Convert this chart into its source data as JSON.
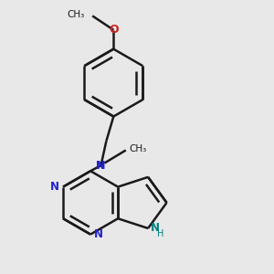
{
  "background_color": "#e8e8e8",
  "bond_color": "#1a1a1a",
  "nitrogen_color": "#2222cc",
  "oxygen_color": "#cc2222",
  "nh_color": "#008080",
  "bond_width": 1.8,
  "fig_width": 3.0,
  "fig_height": 3.0,
  "dpi": 100,
  "xlim": [
    0.15,
    0.85
  ],
  "ylim": [
    0.05,
    0.98
  ]
}
